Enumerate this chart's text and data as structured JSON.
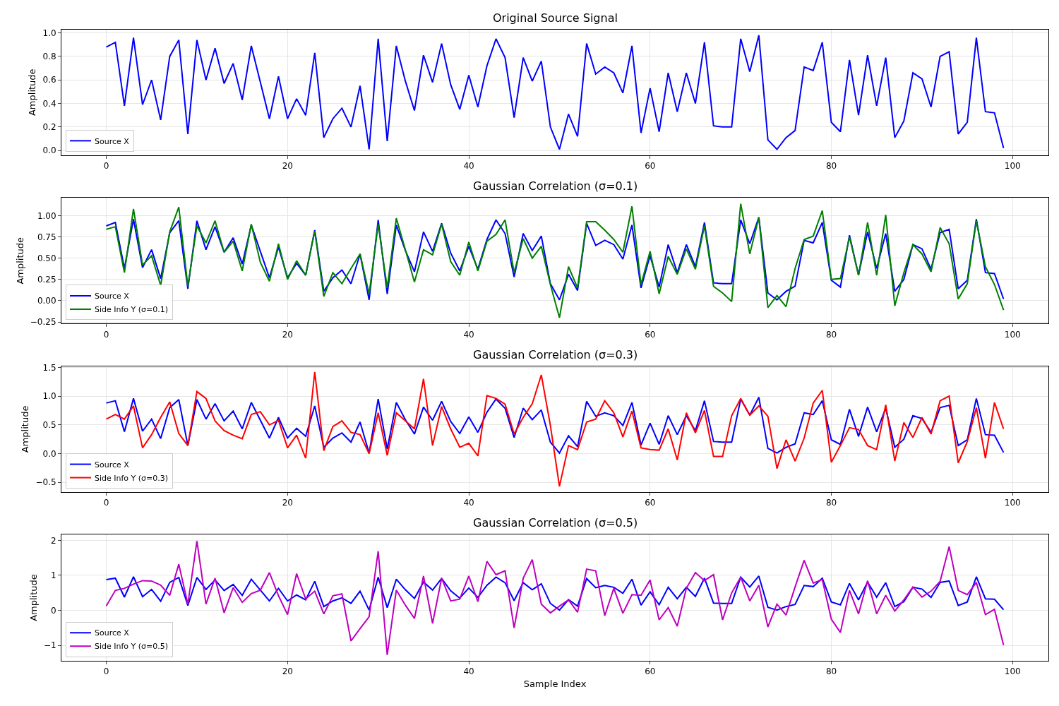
{
  "chart_data": [
    {
      "type": "line",
      "title": "Original Source Signal",
      "ylabel": "Amplitude",
      "x": [
        0,
        1,
        2,
        3,
        4,
        5,
        6,
        7,
        8,
        9,
        10,
        11,
        12,
        13,
        14,
        15,
        16,
        17,
        18,
        19,
        20,
        21,
        22,
        23,
        24,
        25,
        26,
        27,
        28,
        29,
        30,
        31,
        32,
        33,
        34,
        35,
        36,
        37,
        38,
        39,
        40,
        41,
        42,
        43,
        44,
        45,
        46,
        47,
        48,
        49,
        50,
        51,
        52,
        53,
        54,
        55,
        56,
        57,
        58,
        59,
        60,
        61,
        62,
        63,
        64,
        65,
        66,
        67,
        68,
        69,
        70,
        71,
        72,
        73,
        74,
        75,
        76,
        77,
        78,
        79,
        80,
        81,
        82,
        83,
        84,
        85,
        86,
        87,
        88,
        89,
        90,
        91,
        92,
        93,
        94,
        95,
        96,
        97,
        98,
        99
      ],
      "series": [
        {
          "name": "Source X",
          "color": "#0000ff",
          "values": [
            0.88,
            0.92,
            0.38,
            0.96,
            0.39,
            0.6,
            0.26,
            0.8,
            0.94,
            0.14,
            0.94,
            0.6,
            0.87,
            0.57,
            0.74,
            0.43,
            0.89,
            0.58,
            0.27,
            0.63,
            0.27,
            0.44,
            0.3,
            0.83,
            0.11,
            0.27,
            0.36,
            0.2,
            0.55,
            0.01,
            0.95,
            0.08,
            0.89,
            0.59,
            0.34,
            0.81,
            0.58,
            0.91,
            0.56,
            0.35,
            0.64,
            0.37,
            0.72,
            0.95,
            0.79,
            0.28,
            0.79,
            0.59,
            0.76,
            0.2,
            0.01,
            0.31,
            0.12,
            0.91,
            0.65,
            0.71,
            0.66,
            0.49,
            0.89,
            0.15,
            0.53,
            0.16,
            0.66,
            0.33,
            0.66,
            0.4,
            0.92,
            0.21,
            0.2,
            0.2,
            0.95,
            0.67,
            0.98,
            0.09,
            0.01,
            0.11,
            0.17,
            0.71,
            0.68,
            0.92,
            0.24,
            0.16,
            0.77,
            0.3,
            0.81,
            0.38,
            0.79,
            0.11,
            0.25,
            0.66,
            0.61,
            0.37,
            0.8,
            0.84,
            0.14,
            0.24,
            0.96,
            0.33,
            0.32,
            0.02
          ]
        }
      ],
      "xlim": [
        -4.95,
        103.95
      ],
      "xticks": [
        0,
        20,
        40,
        60,
        80,
        100
      ],
      "ylim": [
        -0.04,
        1.03
      ],
      "yticks": [
        {
          "value": 0,
          "label": "0.0"
        },
        {
          "value": 0.2,
          "label": "0.2"
        },
        {
          "value": 0.4,
          "label": "0.4"
        },
        {
          "value": 0.6,
          "label": "0.6"
        },
        {
          "value": 0.8,
          "label": "0.8"
        },
        {
          "value": 1,
          "label": "1.0"
        }
      ],
      "grid": true,
      "legend": "bottom left",
      "line_style": "solid"
    },
    {
      "type": "line",
      "title": "Gaussian Correlation (σ=0.1)",
      "ylabel": "Amplitude",
      "x": [
        0,
        1,
        2,
        3,
        4,
        5,
        6,
        7,
        8,
        9,
        10,
        11,
        12,
        13,
        14,
        15,
        16,
        17,
        18,
        19,
        20,
        21,
        22,
        23,
        24,
        25,
        26,
        27,
        28,
        29,
        30,
        31,
        32,
        33,
        34,
        35,
        36,
        37,
        38,
        39,
        40,
        41,
        42,
        43,
        44,
        45,
        46,
        47,
        48,
        49,
        50,
        51,
        52,
        53,
        54,
        55,
        56,
        57,
        58,
        59,
        60,
        61,
        62,
        63,
        64,
        65,
        66,
        67,
        68,
        69,
        70,
        71,
        72,
        73,
        74,
        75,
        76,
        77,
        78,
        79,
        80,
        81,
        82,
        83,
        84,
        85,
        86,
        87,
        88,
        89,
        90,
        91,
        92,
        93,
        94,
        95,
        96,
        97,
        98,
        99
      ],
      "series": [
        {
          "name": "Source X",
          "color": "#0000ff",
          "values": [
            0.88,
            0.92,
            0.38,
            0.96,
            0.39,
            0.6,
            0.26,
            0.8,
            0.94,
            0.14,
            0.94,
            0.6,
            0.87,
            0.57,
            0.74,
            0.43,
            0.89,
            0.58,
            0.27,
            0.63,
            0.27,
            0.44,
            0.3,
            0.83,
            0.11,
            0.27,
            0.36,
            0.2,
            0.55,
            0.01,
            0.95,
            0.08,
            0.89,
            0.59,
            0.34,
            0.81,
            0.58,
            0.91,
            0.56,
            0.35,
            0.64,
            0.37,
            0.72,
            0.95,
            0.79,
            0.28,
            0.79,
            0.59,
            0.76,
            0.2,
            0.01,
            0.31,
            0.12,
            0.91,
            0.65,
            0.71,
            0.66,
            0.49,
            0.89,
            0.15,
            0.53,
            0.16,
            0.66,
            0.33,
            0.66,
            0.4,
            0.92,
            0.21,
            0.2,
            0.2,
            0.95,
            0.67,
            0.98,
            0.09,
            0.01,
            0.11,
            0.17,
            0.71,
            0.68,
            0.92,
            0.24,
            0.16,
            0.77,
            0.3,
            0.81,
            0.38,
            0.79,
            0.11,
            0.25,
            0.66,
            0.61,
            0.37,
            0.8,
            0.84,
            0.14,
            0.24,
            0.96,
            0.33,
            0.32,
            0.02
          ]
        },
        {
          "name": "Side Info Y (σ=0.1)",
          "color": "#008000",
          "values": [
            0.84,
            0.87,
            0.33,
            1.08,
            0.42,
            0.53,
            0.18,
            0.81,
            1.1,
            0.17,
            0.88,
            0.68,
            0.94,
            0.57,
            0.7,
            0.35,
            0.9,
            0.45,
            0.23,
            0.67,
            0.25,
            0.47,
            0.3,
            0.82,
            0.05,
            0.33,
            0.2,
            0.38,
            0.55,
            0.08,
            0.9,
            0.15,
            0.97,
            0.6,
            0.22,
            0.6,
            0.54,
            0.9,
            0.46,
            0.3,
            0.69,
            0.35,
            0.7,
            0.78,
            0.95,
            0.33,
            0.73,
            0.5,
            0.64,
            0.19,
            -0.2,
            0.4,
            0.15,
            0.93,
            0.93,
            0.83,
            0.72,
            0.57,
            1.11,
            0.19,
            0.58,
            0.08,
            0.52,
            0.31,
            0.61,
            0.37,
            0.88,
            0.17,
            0.09,
            -0.01,
            1.14,
            0.55,
            0.98,
            -0.08,
            0.06,
            -0.07,
            0.38,
            0.72,
            0.76,
            1.06,
            0.25,
            0.26,
            0.75,
            0.3,
            0.92,
            0.3,
            1.01,
            -0.06,
            0.33,
            0.66,
            0.55,
            0.34,
            0.86,
            0.67,
            0.02,
            0.2,
            0.94,
            0.4,
            0.19,
            -0.11
          ]
        }
      ],
      "xlim": [
        -4.95,
        103.95
      ],
      "xticks": [
        0,
        20,
        40,
        60,
        80,
        100
      ],
      "ylim": [
        -0.27,
        1.21
      ],
      "yticks": [
        {
          "value": -0.25,
          "label": "−0.25"
        },
        {
          "value": 0,
          "label": "0.00"
        },
        {
          "value": 0.25,
          "label": "0.25"
        },
        {
          "value": 0.5,
          "label": "0.50"
        },
        {
          "value": 0.75,
          "label": "0.75"
        },
        {
          "value": 1,
          "label": "1.00"
        }
      ],
      "grid": true,
      "legend": "bottom left",
      "line_style": "solid"
    },
    {
      "type": "line",
      "title": "Gaussian Correlation (σ=0.3)",
      "ylabel": "Amplitude",
      "x": [
        0,
        1,
        2,
        3,
        4,
        5,
        6,
        7,
        8,
        9,
        10,
        11,
        12,
        13,
        14,
        15,
        16,
        17,
        18,
        19,
        20,
        21,
        22,
        23,
        24,
        25,
        26,
        27,
        28,
        29,
        30,
        31,
        32,
        33,
        34,
        35,
        36,
        37,
        38,
        39,
        40,
        41,
        42,
        43,
        44,
        45,
        46,
        47,
        48,
        49,
        50,
        51,
        52,
        53,
        54,
        55,
        56,
        57,
        58,
        59,
        60,
        61,
        62,
        63,
        64,
        65,
        66,
        67,
        68,
        69,
        70,
        71,
        72,
        73,
        74,
        75,
        76,
        77,
        78,
        79,
        80,
        81,
        82,
        83,
        84,
        85,
        86,
        87,
        88,
        89,
        90,
        91,
        92,
        93,
        94,
        95,
        96,
        97,
        98,
        99
      ],
      "series": [
        {
          "name": "Source X",
          "color": "#0000ff",
          "values": [
            0.88,
            0.92,
            0.38,
            0.96,
            0.39,
            0.6,
            0.26,
            0.8,
            0.94,
            0.14,
            0.94,
            0.6,
            0.87,
            0.57,
            0.74,
            0.43,
            0.89,
            0.58,
            0.27,
            0.63,
            0.27,
            0.44,
            0.3,
            0.83,
            0.11,
            0.27,
            0.36,
            0.2,
            0.55,
            0.01,
            0.95,
            0.08,
            0.89,
            0.59,
            0.34,
            0.81,
            0.58,
            0.91,
            0.56,
            0.35,
            0.64,
            0.37,
            0.72,
            0.95,
            0.79,
            0.28,
            0.79,
            0.59,
            0.76,
            0.2,
            0.01,
            0.31,
            0.12,
            0.91,
            0.65,
            0.71,
            0.66,
            0.49,
            0.89,
            0.15,
            0.53,
            0.16,
            0.66,
            0.33,
            0.66,
            0.4,
            0.92,
            0.21,
            0.2,
            0.2,
            0.95,
            0.67,
            0.98,
            0.09,
            0.01,
            0.11,
            0.17,
            0.71,
            0.68,
            0.92,
            0.24,
            0.16,
            0.77,
            0.3,
            0.81,
            0.38,
            0.79,
            0.11,
            0.25,
            0.66,
            0.61,
            0.37,
            0.8,
            0.84,
            0.14,
            0.24,
            0.96,
            0.33,
            0.32,
            0.02
          ]
        },
        {
          "name": "Side Info Y (σ=0.3)",
          "color": "#ff0000",
          "values": [
            0.6,
            0.68,
            0.6,
            0.83,
            0.1,
            0.33,
            0.63,
            0.9,
            0.35,
            0.14,
            1.08,
            0.96,
            0.57,
            0.4,
            0.32,
            0.26,
            0.68,
            0.73,
            0.5,
            0.58,
            0.1,
            0.32,
            -0.08,
            1.42,
            0.05,
            0.47,
            0.57,
            0.37,
            0.33,
            0.0,
            0.71,
            -0.03,
            0.71,
            0.57,
            0.43,
            1.3,
            0.14,
            0.82,
            0.43,
            0.11,
            0.18,
            -0.04,
            1.01,
            0.96,
            0.86,
            0.34,
            0.63,
            0.87,
            1.37,
            0.49,
            -0.57,
            0.14,
            0.07,
            0.55,
            0.6,
            0.92,
            0.71,
            0.29,
            0.74,
            0.1,
            0.07,
            0.06,
            0.43,
            -0.11,
            0.71,
            0.36,
            0.75,
            -0.05,
            -0.05,
            0.66,
            0.96,
            0.67,
            0.83,
            0.65,
            -0.26,
            0.24,
            -0.13,
            0.27,
            0.88,
            1.1,
            -0.15,
            0.14,
            0.45,
            0.42,
            0.14,
            0.07,
            0.85,
            -0.13,
            0.54,
            0.28,
            0.63,
            0.34,
            0.92,
            1.0,
            -0.16,
            0.21,
            0.8,
            -0.08,
            0.89,
            0.43
          ]
        }
      ],
      "xlim": [
        -4.95,
        103.95
      ],
      "xticks": [
        0,
        20,
        40,
        60,
        80,
        100
      ],
      "ylim": [
        -0.67,
        1.52
      ],
      "yticks": [
        {
          "value": -0.5,
          "label": "−0.5"
        },
        {
          "value": 0,
          "label": "0.0"
        },
        {
          "value": 0.5,
          "label": "0.5"
        },
        {
          "value": 1,
          "label": "1.0"
        },
        {
          "value": 1.5,
          "label": "1.5"
        }
      ],
      "grid": true,
      "legend": "bottom left",
      "line_style": "solid"
    },
    {
      "type": "line",
      "title": "Gaussian Correlation (σ=0.5)",
      "xlabel": "Sample Index",
      "ylabel": "Amplitude",
      "x": [
        0,
        1,
        2,
        3,
        4,
        5,
        6,
        7,
        8,
        9,
        10,
        11,
        12,
        13,
        14,
        15,
        16,
        17,
        18,
        19,
        20,
        21,
        22,
        23,
        24,
        25,
        26,
        27,
        28,
        29,
        30,
        31,
        32,
        33,
        34,
        35,
        36,
        37,
        38,
        39,
        40,
        41,
        42,
        43,
        44,
        45,
        46,
        47,
        48,
        49,
        50,
        51,
        52,
        53,
        54,
        55,
        56,
        57,
        58,
        59,
        60,
        61,
        62,
        63,
        64,
        65,
        66,
        67,
        68,
        69,
        70,
        71,
        72,
        73,
        74,
        75,
        76,
        77,
        78,
        79,
        80,
        81,
        82,
        83,
        84,
        85,
        86,
        87,
        88,
        89,
        90,
        91,
        92,
        93,
        94,
        95,
        96,
        97,
        98,
        99
      ],
      "series": [
        {
          "name": "Source X",
          "color": "#0000ff",
          "values": [
            0.88,
            0.92,
            0.38,
            0.96,
            0.39,
            0.6,
            0.26,
            0.8,
            0.94,
            0.14,
            0.94,
            0.6,
            0.87,
            0.57,
            0.74,
            0.43,
            0.89,
            0.58,
            0.27,
            0.63,
            0.27,
            0.44,
            0.3,
            0.83,
            0.11,
            0.27,
            0.36,
            0.2,
            0.55,
            0.01,
            0.95,
            0.08,
            0.89,
            0.59,
            0.34,
            0.81,
            0.58,
            0.91,
            0.56,
            0.35,
            0.64,
            0.37,
            0.72,
            0.95,
            0.79,
            0.28,
            0.79,
            0.59,
            0.76,
            0.2,
            0.01,
            0.31,
            0.12,
            0.91,
            0.65,
            0.71,
            0.66,
            0.49,
            0.89,
            0.15,
            0.53,
            0.16,
            0.66,
            0.33,
            0.66,
            0.4,
            0.92,
            0.21,
            0.2,
            0.2,
            0.95,
            0.67,
            0.98,
            0.09,
            0.01,
            0.11,
            0.17,
            0.71,
            0.68,
            0.92,
            0.24,
            0.16,
            0.77,
            0.3,
            0.81,
            0.38,
            0.79,
            0.11,
            0.25,
            0.66,
            0.61,
            0.37,
            0.8,
            0.84,
            0.14,
            0.24,
            0.96,
            0.33,
            0.32,
            0.02
          ]
        },
        {
          "name": "Side Info Y (σ=0.5)",
          "color": "#bf00bf",
          "values": [
            0.13,
            0.57,
            0.63,
            0.75,
            0.85,
            0.84,
            0.72,
            0.43,
            1.32,
            0.18,
            1.98,
            0.18,
            0.92,
            -0.07,
            0.65,
            0.23,
            0.48,
            0.58,
            1.08,
            0.42,
            -0.12,
            1.05,
            0.33,
            0.55,
            -0.1,
            0.42,
            0.47,
            -0.87,
            -0.52,
            -0.18,
            1.69,
            -1.27,
            0.58,
            0.15,
            -0.23,
            0.98,
            -0.37,
            0.92,
            0.27,
            0.32,
            0.98,
            0.25,
            1.4,
            1.02,
            1.13,
            -0.5,
            0.92,
            1.45,
            0.18,
            -0.07,
            0.12,
            0.3,
            -0.05,
            1.18,
            1.13,
            -0.15,
            0.63,
            -0.08,
            0.45,
            0.43,
            0.87,
            -0.27,
            0.08,
            -0.45,
            0.63,
            1.08,
            0.85,
            1.02,
            -0.27,
            0.5,
            0.95,
            0.27,
            0.72,
            -0.47,
            0.18,
            -0.13,
            0.67,
            1.43,
            0.78,
            0.88,
            -0.25,
            -0.63,
            0.57,
            -0.1,
            0.85,
            -0.1,
            0.43,
            -0.02,
            0.3,
            0.67,
            0.38,
            0.55,
            0.83,
            1.82,
            0.57,
            0.45,
            0.8,
            -0.12,
            0.03,
            -0.99
          ]
        }
      ],
      "xlim": [
        -4.95,
        103.95
      ],
      "xticks": [
        0,
        20,
        40,
        60,
        80,
        100
      ],
      "ylim": [
        -1.43,
        2.16
      ],
      "yticks": [
        {
          "value": -1,
          "label": "−1"
        },
        {
          "value": 0,
          "label": "0"
        },
        {
          "value": 1,
          "label": "1"
        },
        {
          "value": 2,
          "label": "2"
        }
      ],
      "grid": true,
      "legend": "bottom left",
      "line_style": "solid"
    }
  ]
}
